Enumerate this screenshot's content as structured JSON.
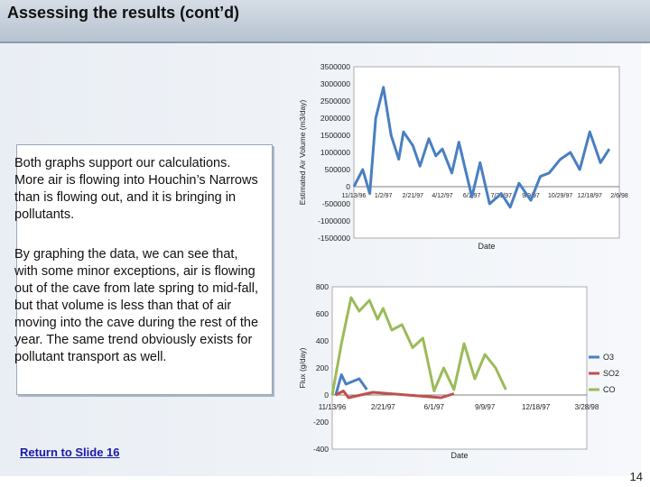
{
  "slide": {
    "title": "Assessing the results (cont’d)",
    "paragraph1": "Both graphs support our calculations. More air is flowing into Houchin’s Narrows than is flowing out, and it is bringing in pollutants.",
    "paragraph2": "By graphing the data, we can see that, with some minor exceptions, air is flowing out of the cave from late spring to mid-fall, but that volume is less than that of air moving into the cave during the rest of the year. The same trend obviously exists for pollutant transport as well.",
    "link_text": "Return to Slide 16",
    "page_number": "14"
  },
  "colors": {
    "series_blue": "#4a7fc1",
    "series_red": "#c0504d",
    "series_green": "#9bbb59",
    "link": "#1a1aa8"
  },
  "chart_data": [
    {
      "type": "line",
      "title": "",
      "xlabel": "Date",
      "ylabel": "Estimated Air Volume (m3/day)",
      "yticks": [
        "3500000",
        "3000000",
        "2500000",
        "2000000",
        "1500000",
        "1000000",
        "500000",
        "0",
        "-500000",
        "-1000000",
        "-1500000"
      ],
      "ylim": [
        -1500000,
        3500000
      ],
      "xticks": [
        "11/13/96",
        "1/2/97",
        "2/21/97",
        "4/12/97",
        "6/1/97",
        "7/21/97",
        "9/9/97",
        "10/29/97",
        "12/18/97",
        "2/6/98"
      ],
      "series": [
        {
          "x": [
            "11/13/96",
            "11/28/96",
            "12/10/96",
            "12/20/96",
            "1/2/97",
            "1/15/97",
            "1/28/97",
            "2/5/97",
            "2/21/97",
            "3/5/97",
            "3/20/97",
            "4/1/97",
            "4/12/97",
            "4/28/97",
            "5/10/97",
            "6/1/97",
            "6/15/97",
            "7/1/97",
            "7/21/97",
            "8/5/97",
            "8/20/97",
            "9/9/97",
            "9/25/97",
            "10/10/97",
            "10/29/97",
            "11/15/97",
            "12/1/97",
            "12/18/97",
            "1/5/98",
            "1/20/98"
          ],
          "values": [
            0,
            500000,
            -200000,
            2000000,
            2900000,
            1500000,
            800000,
            1600000,
            1200000,
            600000,
            1400000,
            900000,
            1100000,
            400000,
            1300000,
            -300000,
            700000,
            -500000,
            -200000,
            -600000,
            100000,
            -400000,
            300000,
            400000,
            800000,
            1000000,
            500000,
            1600000,
            700000,
            1100000
          ]
        }
      ]
    },
    {
      "type": "line",
      "title": "",
      "xlabel": "Date",
      "ylabel": "Flux (g/day)",
      "yticks": [
        "800",
        "600",
        "400",
        "200",
        "0",
        "-200",
        "-400"
      ],
      "ylim": [
        -400,
        800
      ],
      "xticks": [
        "11/13/96",
        "2/21/97",
        "6/1/97",
        "9/9/97",
        "12/18/97",
        "3/28/98"
      ],
      "series": [
        {
          "name": "O3",
          "x": [
            "11/20/96",
            "12/1/96",
            "12/10/96",
            "1/5/97",
            "1/20/97"
          ],
          "values": [
            0,
            150,
            80,
            120,
            40
          ]
        },
        {
          "name": "SO2",
          "x": [
            "11/20/96",
            "12/5/96",
            "12/15/96",
            "2/1/97",
            "6/15/97",
            "7/10/97"
          ],
          "values": [
            0,
            30,
            -20,
            20,
            -20,
            10
          ]
        },
        {
          "name": "CO",
          "x": [
            "11/13/96",
            "12/1/96",
            "12/20/96",
            "1/5/97",
            "1/25/97",
            "2/10/97",
            "2/21/97",
            "3/10/97",
            "3/30/97",
            "4/20/97",
            "5/10/97",
            "6/1/97",
            "6/20/97",
            "7/10/97",
            "7/30/97",
            "8/20/97",
            "9/9/97",
            "9/30/97",
            "10/20/97"
          ],
          "values": [
            0,
            380,
            720,
            620,
            700,
            560,
            640,
            480,
            520,
            350,
            420,
            30,
            200,
            40,
            380,
            120,
            300,
            200,
            40
          ]
        }
      ]
    }
  ]
}
